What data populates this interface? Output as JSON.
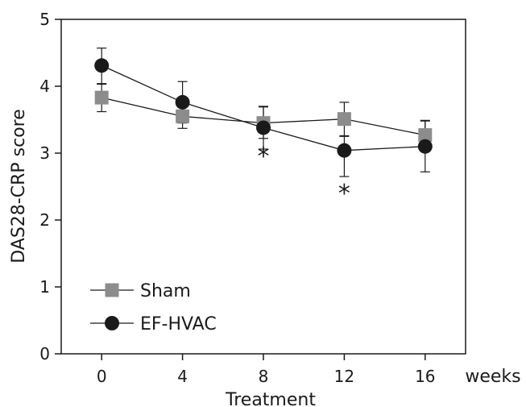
{
  "chart_data": {
    "type": "line",
    "title": "",
    "xlabel": "Treatment",
    "x_unit_label": "weeks",
    "ylabel": "DAS28-CRP score",
    "x": [
      0,
      4,
      8,
      12,
      16
    ],
    "x_tick_labels": [
      "0",
      "4",
      "8",
      "12",
      "16"
    ],
    "y_ticks": [
      0,
      1,
      2,
      3,
      4,
      5
    ],
    "y_tick_labels": [
      "0",
      "1",
      "2",
      "3",
      "4",
      "5"
    ],
    "xlim": [
      -2,
      18
    ],
    "ylim": [
      0,
      5
    ],
    "grid": false,
    "legend_position": "bottom-left",
    "series": [
      {
        "name": "Sham",
        "marker": "square",
        "color": "#8c8c8c",
        "values": [
          3.83,
          3.55,
          3.45,
          3.51,
          3.27
        ],
        "err_upper": [
          0.2,
          0.19,
          0.24,
          0.25,
          0.22
        ],
        "err_lower": [
          0.21,
          0.18,
          0.23,
          0.26,
          0.24
        ]
      },
      {
        "name": "EF-HVAC",
        "marker": "circle",
        "color": "#1a1a1a",
        "values": [
          4.31,
          3.76,
          3.38,
          3.04,
          3.1
        ],
        "err_upper": [
          0.26,
          0.31,
          0.32,
          0.22,
          0.38
        ],
        "err_lower": [
          0.27,
          0.31,
          0.32,
          0.39,
          0.38
        ]
      }
    ],
    "annotations": [
      {
        "text": "*",
        "x": 8,
        "y": 2.95
      },
      {
        "text": "*",
        "x": 12,
        "y": 2.4
      }
    ]
  }
}
